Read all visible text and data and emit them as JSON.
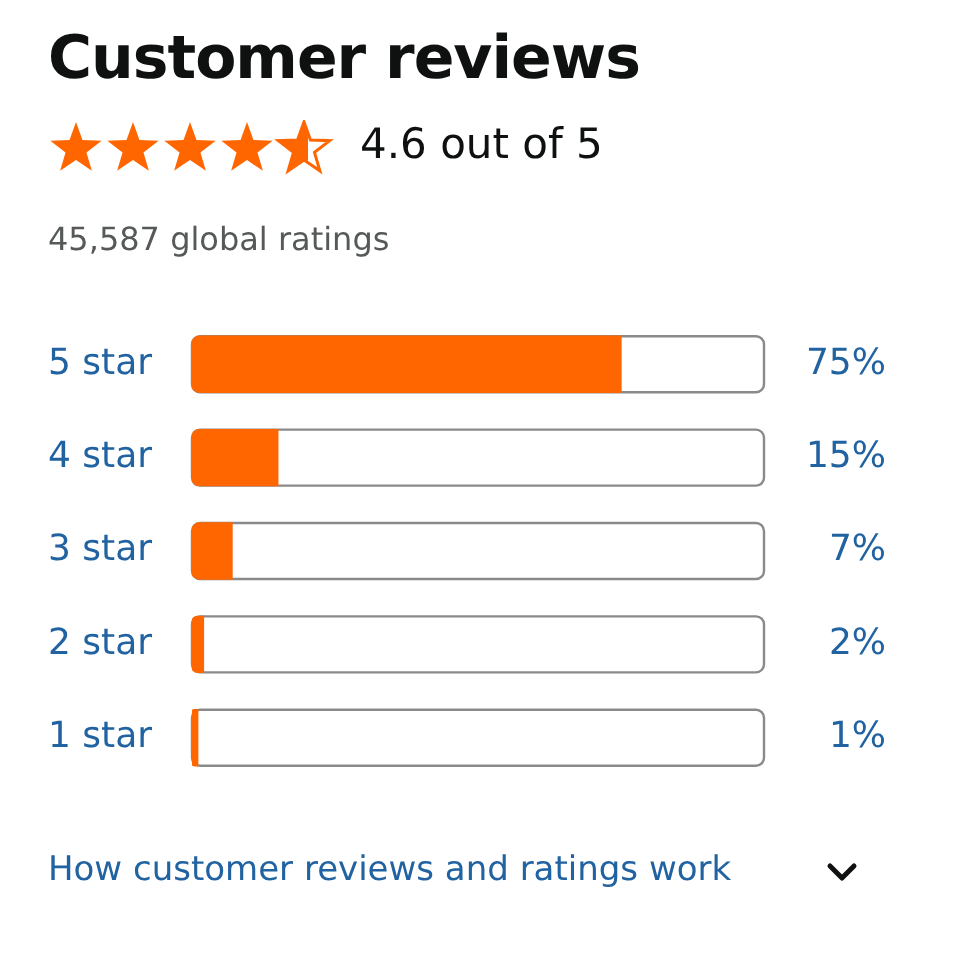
{
  "chart_data": {
    "type": "bar",
    "orientation": "horizontal",
    "title": "Customer reviews",
    "subtitle": "4.6 out of 5",
    "categories": [
      "5 star",
      "4 star",
      "3 star",
      "2 star",
      "1 star"
    ],
    "values": [
      75,
      15,
      7,
      2,
      1
    ],
    "value_labels": [
      "75%",
      "15%",
      "7%",
      "2%",
      "1%"
    ],
    "color": "#ff6600",
    "xlim": [
      0,
      100
    ],
    "tick_labels": "y",
    "annotations": [
      "45,587 global ratings",
      "How customer reviews and ratings work"
    ]
  }
}
